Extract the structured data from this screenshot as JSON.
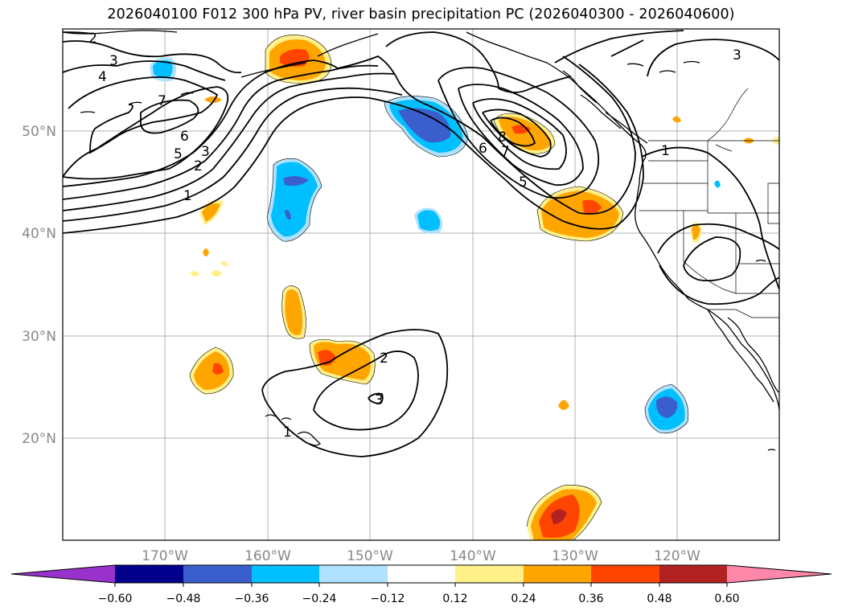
{
  "title": "2026040100 F012 300 hPa PV, river basin precipitation PC (2026040300 - 2026040600)",
  "axes": {
    "lon_labels": [
      "170°W",
      "160°W",
      "150°W",
      "140°W",
      "130°W",
      "120°W"
    ],
    "lat_labels": [
      "50°N",
      "40°N",
      "30°N",
      "20°N"
    ]
  },
  "contour_labels": [
    "2",
    "3",
    "4",
    "7",
    "6",
    "5",
    "3",
    "2",
    "1",
    "8",
    "7",
    "6",
    "5",
    "3",
    "1",
    "2",
    "3",
    "1"
  ],
  "colorbar": {
    "colors": [
      "#9932cc",
      "#00008b",
      "#3a5fcd",
      "#00bfff",
      "#b0e2ff",
      "#ffffff",
      "#fff08a",
      "#ffa500",
      "#ff4500",
      "#b22222",
      "#ff88aa"
    ],
    "tick_labels": [
      "−0.60",
      "−0.48",
      "−0.36",
      "−0.24",
      "−0.12",
      "0.12",
      "0.24",
      "0.36",
      "0.48",
      "0.60"
    ]
  }
}
